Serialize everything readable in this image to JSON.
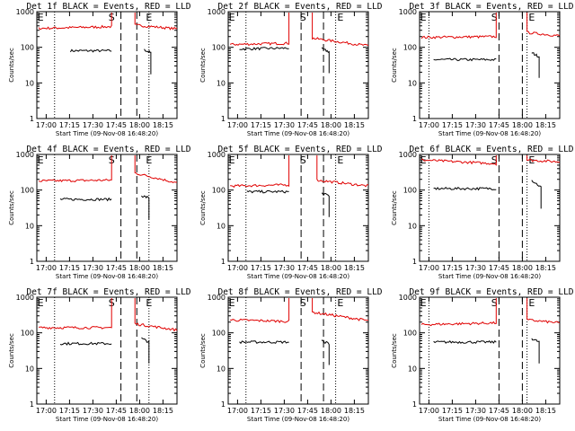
{
  "chart_data": [
    {
      "type": "line",
      "title": "Det 1f BLACK = Events, RED = LLD",
      "xlabel": "Start Time (09-Nov-08 16:48:20)",
      "ylabel": "Counts/sec",
      "yscale": "log",
      "ylim": [
        1,
        1000
      ],
      "xlim": [
        16.9,
        18.4
      ],
      "x_ticks": [
        "17:00",
        "17:15",
        "17:30",
        "17:45",
        "18:00",
        "18:15"
      ],
      "y_ticks": [
        "1",
        "10",
        "100",
        "1000"
      ],
      "markers": [
        "E",
        "S",
        "E"
      ],
      "series": [
        {
          "name": "BLACK",
          "color": "#000000",
          "segments": [
            {
              "x": [
                17.26,
                17.7
              ],
              "y": [
                80,
                80
              ]
            },
            {
              "x": [
                18.05,
                18.12
              ],
              "y": [
                85,
                70
              ]
            }
          ]
        },
        {
          "name": "RED",
          "color": "#e00000",
          "segments": [
            {
              "x": [
                16.92,
                17.7
              ],
              "y": [
                340,
                380
              ]
            },
            {
              "x": [
                17.95,
                18.4
              ],
              "y": [
                420,
                330
              ]
            }
          ]
        }
      ]
    },
    {
      "type": "line",
      "title": "Det 2f BLACK = Events, RED = LLD",
      "xlabel": "Start Time (09-Nov-08 16:48:20)",
      "ylabel": "Counts/sec",
      "yscale": "log",
      "ylim": [
        1,
        1000
      ],
      "xlim": [
        16.9,
        18.4
      ],
      "x_ticks": [
        "17:00",
        "17:15",
        "17:30",
        "17:45",
        "18:00",
        "18:15"
      ],
      "y_ticks": [
        "1",
        "10",
        "100",
        "1000"
      ],
      "markers": [
        "E",
        "S",
        "E"
      ],
      "series": [
        {
          "name": "BLACK",
          "color": "#000000",
          "segments": [
            {
              "x": [
                17.02,
                17.55
              ],
              "y": [
                90,
                95
              ]
            },
            {
              "x": [
                17.9,
                17.98
              ],
              "y": [
                90,
                75
              ]
            }
          ]
        },
        {
          "name": "RED",
          "color": "#e00000",
          "segments": [
            {
              "x": [
                16.92,
                17.55
              ],
              "y": [
                120,
                130
              ]
            },
            {
              "x": [
                17.8,
                18.4
              ],
              "y": [
                180,
                110
              ]
            }
          ]
        }
      ]
    },
    {
      "type": "line",
      "title": "Det 3f BLACK = Events, RED = LLD",
      "xlabel": "Start Time (09-Nov-08 16:48:20)",
      "ylabel": "Counts/sec",
      "yscale": "log",
      "ylim": [
        1,
        1000
      ],
      "xlim": [
        16.9,
        18.4
      ],
      "x_ticks": [
        "17:00",
        "17:15",
        "17:30",
        "17:45",
        "18:00",
        "18:15"
      ],
      "y_ticks": [
        "1",
        "10",
        "100",
        "1000"
      ],
      "markers": [
        "E",
        "S",
        "E"
      ],
      "series": [
        {
          "name": "BLACK",
          "color": "#000000",
          "segments": [
            {
              "x": [
                17.05,
                17.72
              ],
              "y": [
                45,
                45
              ]
            },
            {
              "x": [
                18.1,
                18.18
              ],
              "y": [
                70,
                55
              ]
            }
          ]
        },
        {
          "name": "RED",
          "color": "#e00000",
          "segments": [
            {
              "x": [
                16.92,
                17.72
              ],
              "y": [
                190,
                200
              ]
            },
            {
              "x": [
                18.05,
                18.4
              ],
              "y": [
                260,
                210
              ]
            }
          ]
        }
      ]
    },
    {
      "type": "line",
      "title": "Det 4f BLACK = Events, RED = LLD",
      "xlabel": "Start Time (09-Nov-08 16:48:20)",
      "ylabel": "Counts/sec",
      "yscale": "log",
      "ylim": [
        1,
        1000
      ],
      "xlim": [
        16.9,
        18.4
      ],
      "x_ticks": [
        "17:00",
        "17:15",
        "17:30",
        "17:45",
        "18:00",
        "18:15"
      ],
      "y_ticks": [
        "1",
        "10",
        "100",
        "1000"
      ],
      "markers": [
        "E",
        "S",
        "E"
      ],
      "series": [
        {
          "name": "BLACK",
          "color": "#000000",
          "segments": [
            {
              "x": [
                17.15,
                17.7
              ],
              "y": [
                55,
                55
              ]
            },
            {
              "x": [
                18.02,
                18.1
              ],
              "y": [
                70,
                60
              ]
            }
          ]
        },
        {
          "name": "RED",
          "color": "#e00000",
          "segments": [
            {
              "x": [
                16.92,
                17.7
              ],
              "y": [
                180,
                190
              ]
            },
            {
              "x": [
                17.95,
                18.4
              ],
              "y": [
                300,
                160
              ]
            }
          ]
        }
      ]
    },
    {
      "type": "line",
      "title": "Det 5f BLACK = Events, RED = LLD",
      "xlabel": "Start Time (09-Nov-08 16:48:20)",
      "ylabel": "Counts/sec",
      "yscale": "log",
      "ylim": [
        1,
        1000
      ],
      "xlim": [
        16.9,
        18.4
      ],
      "x_ticks": [
        "17:00",
        "17:15",
        "17:30",
        "17:45",
        "18:00",
        "18:15"
      ],
      "y_ticks": [
        "1",
        "10",
        "100",
        "1000"
      ],
      "markers": [
        "E",
        "S",
        "E"
      ],
      "series": [
        {
          "name": "BLACK",
          "color": "#000000",
          "segments": [
            {
              "x": [
                17.1,
                17.55
              ],
              "y": [
                90,
                90
              ]
            },
            {
              "x": [
                17.9,
                17.98
              ],
              "y": [
                80,
                70
              ]
            }
          ]
        },
        {
          "name": "RED",
          "color": "#e00000",
          "segments": [
            {
              "x": [
                16.92,
                17.55
              ],
              "y": [
                130,
                140
              ]
            },
            {
              "x": [
                17.85,
                18.4
              ],
              "y": [
                190,
                130
              ]
            }
          ]
        }
      ]
    },
    {
      "type": "line",
      "title": "Det 6f BLACK = Events, RED = LLD",
      "xlabel": "Start Time (09-Nov-08 16:48:20)",
      "ylabel": "Counts/sec",
      "yscale": "log",
      "ylim": [
        1,
        1000
      ],
      "xlim": [
        16.9,
        18.4
      ],
      "x_ticks": [
        "17:00",
        "17:15",
        "17:30",
        "17:45",
        "18:00",
        "18:15"
      ],
      "y_ticks": [
        "1",
        "10",
        "100",
        "1000"
      ],
      "markers": [
        "E",
        "S",
        "E"
      ],
      "series": [
        {
          "name": "BLACK",
          "color": "#000000",
          "segments": [
            {
              "x": [
                17.05,
                17.72
              ],
              "y": [
                110,
                110
              ]
            },
            {
              "x": [
                18.1,
                18.2
              ],
              "y": [
                190,
                120
              ]
            }
          ]
        },
        {
          "name": "RED",
          "color": "#e00000",
          "segments": [
            {
              "x": [
                16.92,
                17.72
              ],
              "y": [
                700,
                550
              ]
            },
            {
              "x": [
                18.05,
                18.4
              ],
              "y": [
                700,
                620
              ]
            }
          ]
        }
      ]
    },
    {
      "type": "line",
      "title": "Det 7f BLACK = Events, RED = LLD",
      "xlabel": "Start Time (09-Nov-08 16:48:20)",
      "ylabel": "Counts/sec",
      "yscale": "log",
      "ylim": [
        1,
        1000
      ],
      "xlim": [
        16.9,
        18.4
      ],
      "x_ticks": [
        "17:00",
        "17:15",
        "17:30",
        "17:45",
        "18:00",
        "18:15"
      ],
      "y_ticks": [
        "1",
        "10",
        "100",
        "1000"
      ],
      "markers": [
        "E",
        "S",
        "E"
      ],
      "series": [
        {
          "name": "BLACK",
          "color": "#000000",
          "segments": [
            {
              "x": [
                17.15,
                17.7
              ],
              "y": [
                50,
                50
              ]
            },
            {
              "x": [
                18.02,
                18.1
              ],
              "y": [
                70,
                55
              ]
            }
          ]
        },
        {
          "name": "RED",
          "color": "#e00000",
          "segments": [
            {
              "x": [
                16.92,
                17.7
              ],
              "y": [
                140,
                140
              ]
            },
            {
              "x": [
                17.95,
                18.4
              ],
              "y": [
                180,
                120
              ]
            }
          ]
        }
      ]
    },
    {
      "type": "line",
      "title": "Det 8f BLACK = Events, RED = LLD",
      "xlabel": "Start Time (09-Nov-08 16:48:20)",
      "ylabel": "Counts/sec",
      "yscale": "log",
      "ylim": [
        1,
        1000
      ],
      "xlim": [
        16.9,
        18.4
      ],
      "x_ticks": [
        "17:00",
        "17:15",
        "17:30",
        "17:45",
        "18:00",
        "18:15"
      ],
      "y_ticks": [
        "1",
        "10",
        "100",
        "1000"
      ],
      "markers": [
        "E",
        "S",
        "E"
      ],
      "series": [
        {
          "name": "BLACK",
          "color": "#000000",
          "segments": [
            {
              "x": [
                17.02,
                17.55
              ],
              "y": [
                55,
                55
              ]
            },
            {
              "x": [
                17.9,
                17.98
              ],
              "y": [
                60,
                50
              ]
            }
          ]
        },
        {
          "name": "RED",
          "color": "#e00000",
          "segments": [
            {
              "x": [
                16.92,
                17.55
              ],
              "y": [
                230,
                210
              ]
            },
            {
              "x": [
                17.8,
                18.4
              ],
              "y": [
                380,
                220
              ]
            }
          ]
        }
      ]
    },
    {
      "type": "line",
      "title": "Det 9f BLACK = Events, RED = LLD",
      "xlabel": "Start Time (09-Nov-08 16:48:20)",
      "ylabel": "Counts/sec",
      "yscale": "log",
      "ylim": [
        1,
        1000
      ],
      "xlim": [
        16.9,
        18.4
      ],
      "x_ticks": [
        "17:00",
        "17:15",
        "17:30",
        "17:45",
        "18:00",
        "18:15"
      ],
      "y_ticks": [
        "1",
        "10",
        "100",
        "1000"
      ],
      "markers": [
        "E",
        "S",
        "E"
      ],
      "series": [
        {
          "name": "BLACK",
          "color": "#000000",
          "segments": [
            {
              "x": [
                17.05,
                17.72
              ],
              "y": [
                55,
                55
              ]
            },
            {
              "x": [
                18.1,
                18.18
              ],
              "y": [
                70,
                55
              ]
            }
          ]
        },
        {
          "name": "RED",
          "color": "#e00000",
          "segments": [
            {
              "x": [
                16.92,
                17.72
              ],
              "y": [
                170,
                190
              ]
            },
            {
              "x": [
                18.05,
                18.4
              ],
              "y": [
                230,
                190
              ]
            }
          ]
        }
      ]
    }
  ]
}
